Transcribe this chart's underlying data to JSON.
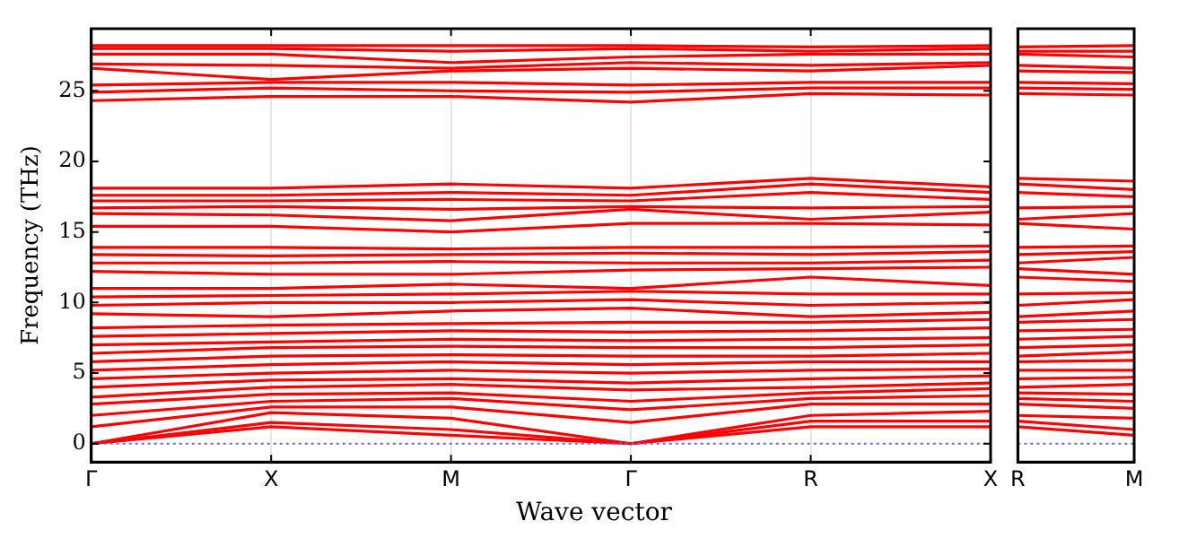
{
  "chart_data": [
    {
      "type": "line",
      "xlabel": "Wave vector",
      "ylabel": "Frequency (THz)",
      "categories": [
        "Γ",
        "X",
        "M",
        "Γ",
        "R",
        "X"
      ],
      "ylim": [
        -1.3,
        29.4
      ],
      "yticks": [
        0,
        5,
        10,
        15,
        20,
        25
      ],
      "grid": "x",
      "legend": false,
      "ref_lines": [
        {
          "axis": "y",
          "value": 0,
          "color": "#6666ff",
          "line_style": "dotted"
        }
      ],
      "series": [
        {
          "color": "#ff0000",
          "values": [
            0,
            1.2,
            0.6,
            0,
            1.2,
            1.2
          ]
        },
        {
          "color": "#ff0000",
          "values": [
            0,
            1.5,
            1.0,
            0,
            1.6,
            1.6
          ]
        },
        {
          "color": "#ff0000",
          "values": [
            0,
            2.2,
            1.8,
            0,
            2.0,
            2.3
          ]
        },
        {
          "color": "#ff0000",
          "values": [
            1.2,
            2.6,
            2.6,
            1.5,
            2.8,
            2.8
          ]
        },
        {
          "color": "#ff0000",
          "values": [
            2.0,
            3.0,
            3.2,
            2.4,
            3.2,
            3.4
          ]
        },
        {
          "color": "#ff0000",
          "values": [
            2.8,
            3.5,
            3.6,
            3.0,
            3.6,
            3.9
          ]
        },
        {
          "color": "#ff0000",
          "values": [
            3.3,
            4.0,
            4.2,
            3.8,
            4.0,
            4.3
          ]
        },
        {
          "color": "#ff0000",
          "values": [
            4.0,
            4.5,
            4.6,
            4.3,
            4.6,
            4.8
          ]
        },
        {
          "color": "#ff0000",
          "values": [
            4.6,
            5.0,
            5.2,
            5.0,
            5.2,
            5.3
          ]
        },
        {
          "color": "#ff0000",
          "values": [
            5.2,
            5.6,
            5.8,
            5.6,
            5.8,
            5.8
          ]
        },
        {
          "color": "#ff0000",
          "values": [
            5.8,
            6.2,
            6.3,
            6.2,
            6.2,
            6.4
          ]
        },
        {
          "color": "#ff0000",
          "values": [
            6.4,
            6.8,
            6.9,
            6.8,
            6.8,
            7.0
          ]
        },
        {
          "color": "#ff0000",
          "values": [
            7.0,
            7.2,
            7.4,
            7.3,
            7.4,
            7.5
          ]
        },
        {
          "color": "#ff0000",
          "values": [
            7.6,
            7.8,
            8.0,
            7.9,
            8.0,
            8.2
          ]
        },
        {
          "color": "#ff0000",
          "values": [
            8.2,
            8.4,
            8.5,
            8.6,
            8.6,
            8.8
          ]
        },
        {
          "color": "#ff0000",
          "values": [
            9.2,
            9.0,
            9.4,
            9.6,
            9.0,
            9.3
          ]
        },
        {
          "color": "#ff0000",
          "values": [
            9.8,
            10.0,
            10.0,
            10.2,
            9.8,
            10.0
          ]
        },
        {
          "color": "#ff0000",
          "values": [
            10.4,
            10.5,
            10.6,
            10.8,
            10.6,
            10.6
          ]
        },
        {
          "color": "#ff0000",
          "values": [
            11.0,
            11.0,
            11.3,
            11.0,
            11.8,
            11.2
          ]
        },
        {
          "color": "#ff0000",
          "values": [
            12.2,
            12.0,
            12.0,
            12.3,
            12.4,
            12.5
          ]
        },
        {
          "color": "#ff0000",
          "values": [
            12.8,
            12.8,
            12.9,
            12.8,
            12.8,
            13.0
          ]
        },
        {
          "color": "#ff0000",
          "values": [
            13.4,
            13.3,
            13.4,
            13.5,
            13.4,
            13.6
          ]
        },
        {
          "color": "#ff0000",
          "values": [
            13.9,
            13.9,
            13.8,
            13.9,
            13.9,
            14.0
          ]
        },
        {
          "color": "#ff0000",
          "values": [
            15.4,
            15.4,
            15.0,
            15.6,
            15.6,
            15.5
          ]
        },
        {
          "color": "#ff0000",
          "values": [
            16.3,
            16.2,
            15.8,
            16.6,
            15.9,
            16.4
          ]
        },
        {
          "color": "#ff0000",
          "values": [
            16.7,
            16.8,
            16.6,
            16.8,
            16.7,
            16.8
          ]
        },
        {
          "color": "#ff0000",
          "values": [
            17.2,
            17.2,
            17.3,
            17.2,
            17.8,
            17.3
          ]
        },
        {
          "color": "#ff0000",
          "values": [
            17.6,
            17.6,
            17.8,
            17.6,
            18.4,
            17.8
          ]
        },
        {
          "color": "#ff0000",
          "values": [
            18.1,
            18.1,
            18.4,
            18.1,
            18.8,
            18.2
          ]
        },
        {
          "color": "#ff0000",
          "values": [
            24.3,
            24.6,
            24.6,
            24.2,
            24.8,
            24.7
          ]
        },
        {
          "color": "#ff0000",
          "values": [
            24.9,
            25.2,
            25.0,
            24.9,
            25.2,
            25.2
          ]
        },
        {
          "color": "#ff0000",
          "values": [
            25.4,
            25.6,
            25.6,
            25.4,
            25.6,
            25.6
          ]
        },
        {
          "color": "#ff0000",
          "values": [
            26.6,
            25.8,
            26.4,
            26.6,
            26.4,
            26.8
          ]
        },
        {
          "color": "#ff0000",
          "values": [
            26.9,
            26.8,
            26.6,
            27.0,
            26.8,
            27.0
          ]
        },
        {
          "color": "#ff0000",
          "values": [
            27.6,
            27.6,
            27.0,
            27.4,
            27.6,
            27.6
          ]
        },
        {
          "color": "#ff0000",
          "values": [
            28.0,
            28.0,
            27.8,
            28.0,
            27.8,
            28.0
          ]
        },
        {
          "color": "#ff0000",
          "values": [
            28.2,
            28.2,
            28.2,
            28.2,
            28.1,
            28.2
          ]
        }
      ]
    },
    {
      "type": "line",
      "categories": [
        "R",
        "M"
      ],
      "ylim": [
        -1.3,
        29.4
      ],
      "yticks": [
        0,
        5,
        10,
        15,
        20,
        25
      ],
      "tick_labels": "x",
      "legend": false,
      "ref_lines": [
        {
          "axis": "y",
          "value": 0,
          "color": "#6666ff",
          "line_style": "dotted"
        }
      ],
      "series": [
        {
          "color": "#ff0000",
          "values": [
            1.2,
            0.6
          ]
        },
        {
          "color": "#ff0000",
          "values": [
            1.6,
            1.0
          ]
        },
        {
          "color": "#ff0000",
          "values": [
            2.0,
            1.8
          ]
        },
        {
          "color": "#ff0000",
          "values": [
            2.8,
            2.5
          ]
        },
        {
          "color": "#ff0000",
          "values": [
            3.2,
            3.0
          ]
        },
        {
          "color": "#ff0000",
          "values": [
            3.6,
            3.5
          ]
        },
        {
          "color": "#ff0000",
          "values": [
            4.0,
            4.2
          ]
        },
        {
          "color": "#ff0000",
          "values": [
            4.6,
            4.7
          ]
        },
        {
          "color": "#ff0000",
          "values": [
            5.2,
            5.2
          ]
        },
        {
          "color": "#ff0000",
          "values": [
            5.8,
            5.9
          ]
        },
        {
          "color": "#ff0000",
          "values": [
            6.2,
            6.5
          ]
        },
        {
          "color": "#ff0000",
          "values": [
            6.8,
            7.0
          ]
        },
        {
          "color": "#ff0000",
          "values": [
            7.4,
            7.6
          ]
        },
        {
          "color": "#ff0000",
          "values": [
            8.0,
            8.1
          ]
        },
        {
          "color": "#ff0000",
          "values": [
            8.6,
            8.8
          ]
        },
        {
          "color": "#ff0000",
          "values": [
            9.0,
            9.4
          ]
        },
        {
          "color": "#ff0000",
          "values": [
            9.8,
            10.2
          ]
        },
        {
          "color": "#ff0000",
          "values": [
            10.6,
            10.7
          ]
        },
        {
          "color": "#ff0000",
          "values": [
            11.8,
            11.5
          ]
        },
        {
          "color": "#ff0000",
          "values": [
            12.4,
            12.0
          ]
        },
        {
          "color": "#ff0000",
          "values": [
            12.8,
            13.2
          ]
        },
        {
          "color": "#ff0000",
          "values": [
            13.4,
            13.6
          ]
        },
        {
          "color": "#ff0000",
          "values": [
            13.9,
            14.0
          ]
        },
        {
          "color": "#ff0000",
          "values": [
            15.6,
            15.2
          ]
        },
        {
          "color": "#ff0000",
          "values": [
            15.9,
            16.3
          ]
        },
        {
          "color": "#ff0000",
          "values": [
            16.7,
            16.8
          ]
        },
        {
          "color": "#ff0000",
          "values": [
            17.8,
            17.5
          ]
        },
        {
          "color": "#ff0000",
          "values": [
            18.4,
            18.0
          ]
        },
        {
          "color": "#ff0000",
          "values": [
            18.8,
            18.6
          ]
        },
        {
          "color": "#ff0000",
          "values": [
            24.8,
            24.7
          ]
        },
        {
          "color": "#ff0000",
          "values": [
            25.2,
            25.1
          ]
        },
        {
          "color": "#ff0000",
          "values": [
            25.6,
            25.5
          ]
        },
        {
          "color": "#ff0000",
          "values": [
            26.4,
            26.3
          ]
        },
        {
          "color": "#ff0000",
          "values": [
            26.8,
            26.6
          ]
        },
        {
          "color": "#ff0000",
          "values": [
            27.6,
            27.4
          ]
        },
        {
          "color": "#ff0000",
          "values": [
            27.8,
            27.8
          ]
        },
        {
          "color": "#ff0000",
          "values": [
            28.1,
            28.2
          ]
        }
      ]
    }
  ]
}
